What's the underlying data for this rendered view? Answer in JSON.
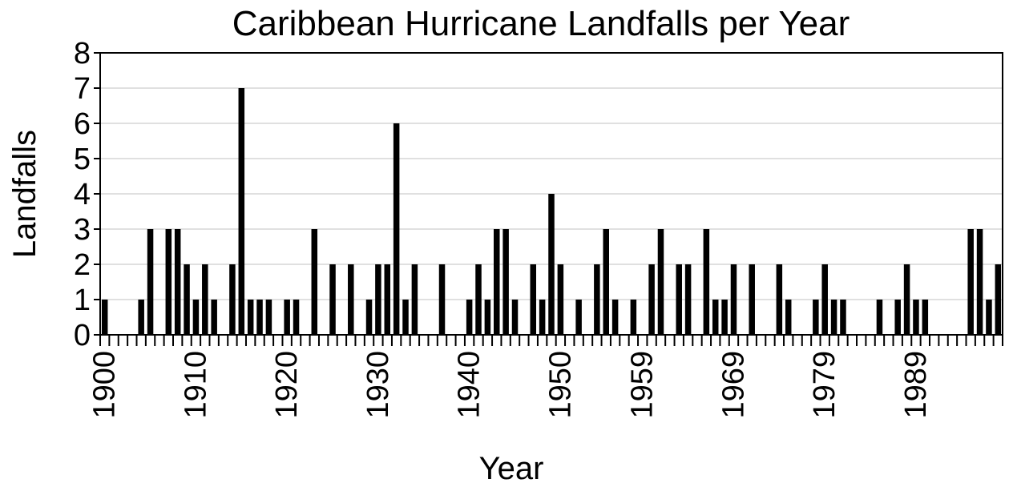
{
  "chart_data": {
    "type": "bar",
    "title": "Caribbean Hurricane Landfalls per Year",
    "xlabel": "Year",
    "ylabel": "Landfalls",
    "ylim": [
      0,
      8
    ],
    "yticks": [
      0,
      1,
      2,
      3,
      4,
      5,
      6,
      7,
      8
    ],
    "grid": true,
    "legend": "none",
    "bar_color": "#000000",
    "categories": [
      "1900",
      "1901",
      "1902",
      "1903",
      "1904",
      "1905",
      "1906",
      "1907",
      "1908",
      "1909",
      "1910",
      "1911",
      "1912",
      "1913",
      "1914",
      "1915",
      "1916",
      "1917",
      "1918",
      "1919",
      "1920",
      "1921",
      "1922",
      "1923",
      "1924",
      "1925",
      "1926",
      "1927",
      "1928",
      "1929",
      "1930",
      "1931",
      "1932",
      "1933",
      "1934",
      "1935",
      "1936",
      "1937",
      "1938",
      "1939",
      "1940",
      "1941",
      "1942",
      "1943",
      "1944",
      "1945",
      "1946",
      "1947",
      "1948",
      "1949",
      "1950",
      "1951",
      "1952",
      "1953",
      "1954",
      "1955",
      "1956",
      "1957",
      "1958",
      "1959",
      "1960",
      "1961",
      "1962",
      "1963",
      "1964",
      "1965",
      "1966",
      "1967",
      "1968",
      "1969",
      "1970",
      "1971",
      "1972",
      "1973",
      "1974",
      "1975",
      "1976",
      "1977",
      "1978",
      "1979",
      "1980",
      "1981",
      "1982",
      "1983",
      "1984",
      "1985",
      "1986",
      "1987",
      "1988",
      "1989",
      "1990",
      "1991",
      "1992",
      "1993",
      "1994",
      "1995",
      "1996",
      "1997",
      "1998"
    ],
    "tick_labels": [
      "1900",
      "1910",
      "1920",
      "1930",
      "1940",
      "1950",
      "1959",
      "1969",
      "1979",
      "1989"
    ],
    "values": [
      1,
      0,
      0,
      0,
      1,
      3,
      0,
      3,
      3,
      2,
      1,
      2,
      1,
      0,
      2,
      7,
      1,
      1,
      1,
      0,
      1,
      1,
      0,
      3,
      0,
      2,
      0,
      2,
      0,
      1,
      2,
      2,
      6,
      1,
      2,
      0,
      0,
      2,
      0,
      0,
      1,
      2,
      1,
      3,
      3,
      1,
      0,
      2,
      1,
      4,
      2,
      0,
      1,
      0,
      2,
      3,
      1,
      0,
      1,
      0,
      2,
      3,
      0,
      2,
      2,
      0,
      3,
      1,
      1,
      2,
      0,
      2,
      0,
      0,
      2,
      1,
      0,
      0,
      1,
      2,
      1,
      1,
      0,
      0,
      0,
      1,
      0,
      1,
      2,
      1,
      1,
      0,
      0,
      0,
      0,
      3,
      3,
      1,
      2
    ]
  }
}
